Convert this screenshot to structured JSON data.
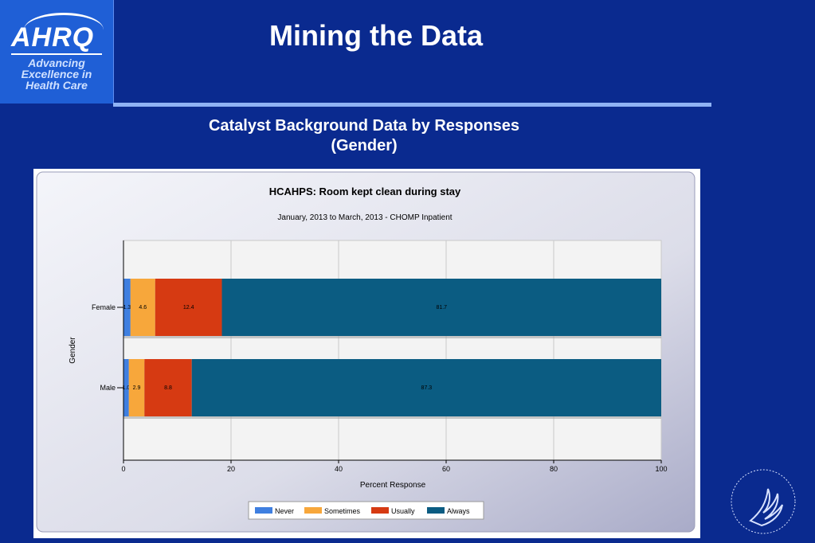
{
  "logo": {
    "name": "AHRQ",
    "tagline_line1": "Advancing",
    "tagline_line2": "Excellence in",
    "tagline_line3": "Health Care"
  },
  "slide": {
    "title": "Mining the Data",
    "subtitle_line1": "Catalyst Background Data by Responses",
    "subtitle_line2": "(Gender)"
  },
  "colors": {
    "Never": "#3f7fe0",
    "Sometimes": "#f7a73b",
    "Usually": "#d63a12",
    "Always": "#0b5c82"
  },
  "chart_data": {
    "type": "bar",
    "orientation": "horizontal",
    "stacked": true,
    "title": "HCAHPS: Room kept clean during stay",
    "subtitle": "January, 2013 to March, 2013 - CHOMP Inpatient",
    "xlabel": "Percent Response",
    "ylabel": "Gender",
    "xlim": [
      0,
      100
    ],
    "xticks": [
      0,
      20,
      40,
      60,
      80,
      100
    ],
    "grid": true,
    "legend_position": "bottom",
    "categories": [
      "Female",
      "Male"
    ],
    "series": [
      {
        "name": "Never",
        "values": [
          1.3,
          1.0
        ],
        "labels": [
          "1.3",
          "1.0"
        ]
      },
      {
        "name": "Sometimes",
        "values": [
          4.6,
          2.9
        ],
        "labels": [
          "4.6",
          "2.9"
        ]
      },
      {
        "name": "Usually",
        "values": [
          12.4,
          8.8
        ],
        "labels": [
          "12.4",
          "8.8"
        ]
      },
      {
        "name": "Always",
        "values": [
          81.7,
          87.3
        ],
        "labels": [
          "81.7",
          "87.3"
        ]
      }
    ]
  }
}
